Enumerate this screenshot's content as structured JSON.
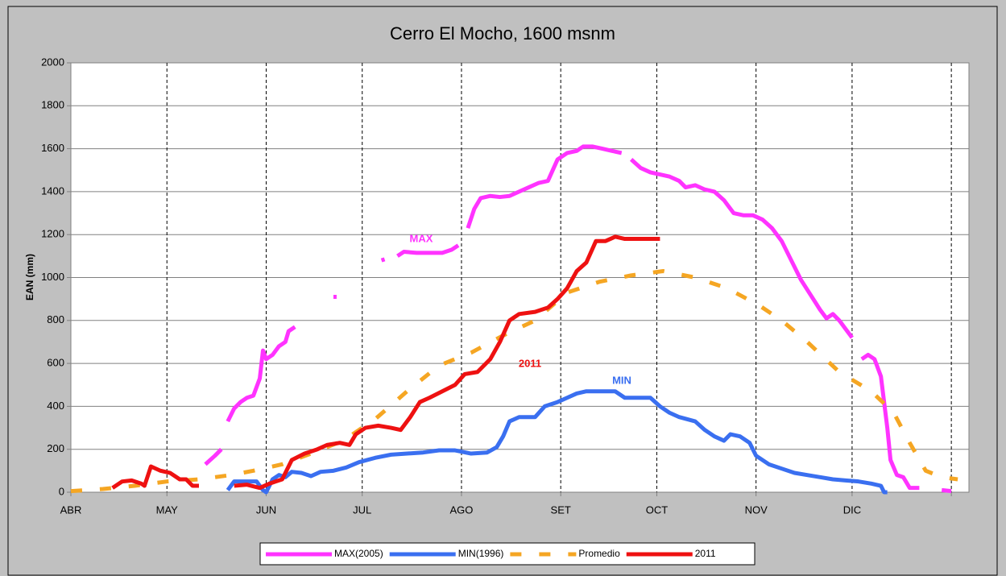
{
  "chart_data": {
    "type": "line",
    "title": "Cerro El Mocho, 1600 msnm",
    "y_label": "EAN (mm)",
    "xlim": [
      0,
      280.5
    ],
    "xticks": [
      {
        "value": 0,
        "label": "ABR"
      },
      {
        "value": 30,
        "label": "MAY"
      },
      {
        "value": 61,
        "label": "JUN"
      },
      {
        "value": 91,
        "label": "JUL"
      },
      {
        "value": 122,
        "label": "AGO"
      },
      {
        "value": 153,
        "label": "SET"
      },
      {
        "value": 183,
        "label": "OCT"
      },
      {
        "value": 214,
        "label": "NOV"
      },
      {
        "value": 244,
        "label": "DIC"
      },
      {
        "value": 275,
        "label": null
      }
    ],
    "ylim": [
      0,
      2000
    ],
    "yticks": [
      0,
      200,
      400,
      600,
      800,
      1000,
      1200,
      1400,
      1600,
      1800,
      2000
    ],
    "grid": true,
    "legend": "bottom",
    "annotations": [
      "MAX",
      "2011",
      "MIN"
    ],
    "series": [
      {
        "name": "MAX(2005)",
        "color": "#ff33ff",
        "style": "solid",
        "x": [
          42,
          45,
          47,
          48,
          49,
          51,
          53,
          55,
          57,
          59,
          60,
          61,
          63,
          65,
          67,
          68,
          70,
          76,
          82,
          83,
          90,
          97,
          98,
          100,
          102,
          104,
          108,
          112,
          116,
          119,
          121,
          122,
          124,
          126,
          128,
          131,
          134,
          137,
          140,
          143,
          146,
          149,
          152,
          155,
          158,
          160,
          163,
          166,
          169,
          172,
          173,
          175,
          178,
          181,
          184,
          187,
          190,
          192,
          195,
          198,
          201,
          204,
          207,
          210,
          213,
          216,
          219,
          222,
          225,
          228,
          231,
          234,
          236,
          238,
          240,
          242,
          244,
          245,
          247,
          249,
          251,
          253,
          255,
          256,
          258,
          260,
          262,
          265,
          268,
          272,
          275
        ],
        "values": [
          130,
          170,
          200,
          null,
          330,
          390,
          420,
          440,
          450,
          530,
          660,
          620,
          640,
          680,
          700,
          750,
          770,
          null,
          910,
          910,
          null,
          1080,
          1085,
          null,
          1100,
          1120,
          1115,
          1115,
          1115,
          1130,
          1150,
          null,
          1230,
          1320,
          1370,
          1380,
          1375,
          1380,
          1400,
          1420,
          1440,
          1450,
          1550,
          1580,
          1590,
          1610,
          1610,
          1600,
          1590,
          1580,
          null,
          1550,
          1510,
          1490,
          1480,
          1470,
          1450,
          1420,
          1430,
          1410,
          1400,
          1360,
          1300,
          1290,
          1290,
          1270,
          1230,
          1170,
          1080,
          990,
          920,
          850,
          810,
          830,
          800,
          760,
          720,
          null,
          620,
          640,
          620,
          540,
          300,
          150,
          80,
          70,
          20,
          20,
          null,
          10,
          5
        ]
      },
      {
        "name": "MIN(1996)",
        "color": "#3a6ff0",
        "style": "solid",
        "x": [
          49,
          51,
          55,
          58,
          60,
          61,
          63,
          65,
          67,
          69,
          72,
          75,
          78,
          82,
          86,
          90,
          95,
          100,
          105,
          110,
          115,
          120,
          125,
          130,
          133,
          135,
          137,
          140,
          145,
          148,
          152,
          155,
          158,
          161,
          165,
          170,
          173,
          178,
          181,
          184,
          187,
          190,
          195,
          198,
          201,
          204,
          206,
          209,
          212,
          214,
          218,
          222,
          226,
          230,
          234,
          238,
          242,
          246,
          250,
          253,
          254,
          255
        ],
        "values": [
          10,
          50,
          50,
          50,
          10,
          0,
          60,
          80,
          70,
          95,
          90,
          75,
          95,
          100,
          115,
          140,
          160,
          175,
          180,
          185,
          195,
          195,
          180,
          185,
          210,
          260,
          330,
          350,
          350,
          400,
          420,
          440,
          460,
          470,
          470,
          470,
          440,
          440,
          440,
          400,
          370,
          350,
          330,
          290,
          260,
          240,
          270,
          260,
          230,
          170,
          130,
          110,
          90,
          80,
          70,
          60,
          55,
          50,
          40,
          30,
          0,
          0
        ]
      },
      {
        "name": "Promedio",
        "color": "#f5a623",
        "style": "dashed",
        "x": [
          0,
          10,
          20,
          30,
          40,
          50,
          57,
          66,
          75,
          85,
          95,
          105,
          115,
          125,
          135,
          145,
          155,
          165,
          175,
          185,
          195,
          205,
          215,
          222,
          230,
          240,
          250,
          257,
          262,
          267,
          272,
          277
        ],
        "values": [
          5,
          15,
          30,
          50,
          60,
          80,
          100,
          130,
          180,
          240,
          340,
          470,
          590,
          650,
          730,
          800,
          930,
          980,
          1010,
          1030,
          1000,
          950,
          870,
          800,
          700,
          560,
          470,
          370,
          230,
          100,
          70,
          60
        ]
      },
      {
        "name": "2011",
        "color": "#ee1111",
        "style": "solid",
        "x": [
          13,
          16,
          19,
          22,
          23,
          25,
          28,
          31,
          34,
          36,
          38,
          40,
          45,
          51,
          55,
          59,
          62,
          64,
          66,
          69,
          73,
          77,
          80,
          84,
          87,
          89,
          92,
          96,
          100,
          103,
          106,
          109,
          112,
          116,
          120,
          123,
          127,
          131,
          134,
          137,
          140,
          145,
          149,
          152,
          155,
          158,
          161,
          164,
          167,
          170,
          173,
          178,
          184
        ],
        "values": [
          20,
          50,
          55,
          40,
          30,
          120,
          100,
          90,
          60,
          60,
          30,
          30,
          null,
          30,
          35,
          20,
          40,
          50,
          60,
          150,
          180,
          200,
          220,
          230,
          220,
          270,
          300,
          310,
          300,
          290,
          350,
          420,
          440,
          470,
          500,
          550,
          560,
          620,
          700,
          800,
          830,
          840,
          860,
          900,
          950,
          1030,
          1070,
          1170,
          1170,
          1190,
          1180,
          1180,
          1180
        ]
      }
    ]
  }
}
